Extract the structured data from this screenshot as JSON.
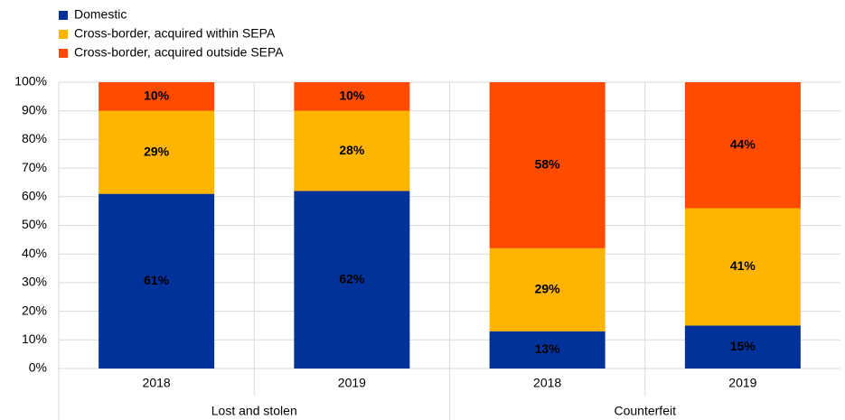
{
  "chart_data": {
    "type": "stacked_bar",
    "categories": [
      "2018",
      "2019",
      "2018",
      "2019"
    ],
    "groups": [
      "Lost and stolen",
      "Counterfeit"
    ],
    "series": [
      {
        "name": "Domestic",
        "color": "#003299",
        "values": [
          61,
          62,
          13,
          15
        ],
        "value_labels": [
          "61%",
          "62%",
          "13%",
          "15%"
        ]
      },
      {
        "name": "Cross-border, acquired within SEPA",
        "color": "#ffb400",
        "values": [
          29,
          28,
          29,
          41
        ],
        "value_labels": [
          "29%",
          "28%",
          "29%",
          "41%"
        ]
      },
      {
        "name": "Cross-border, acquired outside SEPA",
        "color": "#ff4b00",
        "values": [
          10,
          10,
          58,
          44
        ],
        "value_labels": [
          "10%",
          "10%",
          "58%",
          "44%"
        ]
      }
    ],
    "ylim": [
      0,
      100
    ],
    "yticks": [
      {
        "value": 0,
        "label": "0%"
      },
      {
        "value": 10,
        "label": "10%"
      },
      {
        "value": 20,
        "label": "20%"
      },
      {
        "value": 30,
        "label": "30%"
      },
      {
        "value": 40,
        "label": "40%"
      },
      {
        "value": 50,
        "label": "50%"
      },
      {
        "value": 60,
        "label": "60%"
      },
      {
        "value": 70,
        "label": "70%"
      },
      {
        "value": 80,
        "label": "80%"
      },
      {
        "value": 90,
        "label": "90%"
      },
      {
        "value": 100,
        "label": "100%"
      }
    ],
    "grid": true,
    "legend": "top-left"
  }
}
